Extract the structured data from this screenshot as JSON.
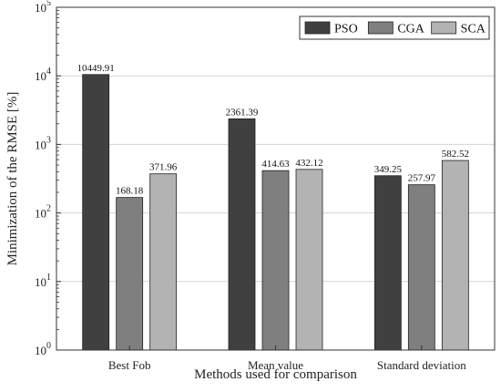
{
  "chart_data": {
    "type": "bar",
    "xlabel": "Methods used for comparison",
    "ylabel": "Minimization of the RMSE [%]",
    "categories": [
      "Best Fob",
      "Mean value",
      "Standard deviation"
    ],
    "yscale": "log",
    "ylim": [
      1,
      100000
    ],
    "yticks": [
      {
        "base": "10",
        "exp": "0"
      },
      {
        "base": "10",
        "exp": "1"
      },
      {
        "base": "10",
        "exp": "2"
      },
      {
        "base": "10",
        "exp": "3"
      },
      {
        "base": "10",
        "exp": "4"
      },
      {
        "base": "10",
        "exp": "5"
      }
    ],
    "grid": true,
    "legend_position": "top-right",
    "series": [
      {
        "name": "PSO",
        "color": "#404040",
        "values": [
          10449.91,
          2361.39,
          349.25
        ],
        "labels": [
          "10449.91",
          "2361.39",
          "349.25"
        ]
      },
      {
        "name": "CGA",
        "color": "#7f7f7f",
        "values": [
          168.18,
          414.63,
          257.97
        ],
        "labels": [
          "168.18",
          "414.63",
          "257.97"
        ]
      },
      {
        "name": "SCA",
        "color": "#b3b3b3",
        "values": [
          371.96,
          432.12,
          582.52
        ],
        "labels": [
          "371.96",
          "432.12",
          "582.52"
        ]
      }
    ]
  }
}
